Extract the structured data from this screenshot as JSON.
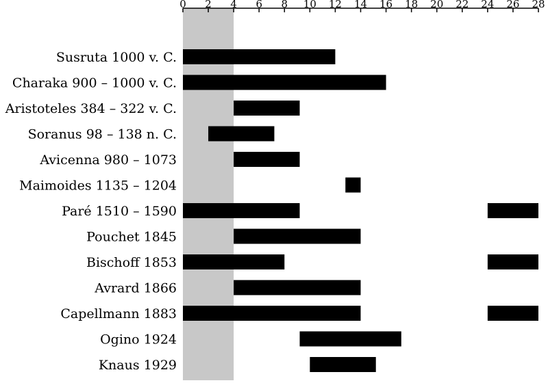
{
  "chart_data": {
    "type": "bar",
    "orientation": "horizontal-range",
    "xlim": [
      0,
      28
    ],
    "x_ticks": [
      "0",
      "2",
      "4",
      "6",
      "8",
      "10",
      "12",
      "14",
      "16",
      "18",
      "20",
      "22",
      "24",
      "26",
      "28"
    ],
    "axis_position": "top",
    "colors": {
      "bar": "#000000",
      "band": "#c8c8c8",
      "axis": "#000000"
    },
    "highlight_band": [
      0,
      4
    ],
    "rows": [
      {
        "label": "Susruta 1000 v. C.",
        "ranges": [
          [
            0,
            12
          ]
        ]
      },
      {
        "label": "Charaka 900 – 1000 v. C.",
        "ranges": [
          [
            0,
            16
          ]
        ]
      },
      {
        "label": "Aristoteles 384 – 322 v. C.",
        "ranges": [
          [
            4,
            9.2
          ]
        ]
      },
      {
        "label": "Soranus 98 – 138 n. C.",
        "ranges": [
          [
            2,
            7.2
          ]
        ]
      },
      {
        "label": "Avicenna 980 – 1073",
        "ranges": [
          [
            4,
            9.2
          ]
        ]
      },
      {
        "label": "Maimoides 1135 – 1204",
        "ranges": [
          [
            12.8,
            14
          ]
        ]
      },
      {
        "label": "Paré 1510 – 1590",
        "ranges": [
          [
            0,
            9.2
          ],
          [
            24,
            28
          ]
        ]
      },
      {
        "label": "Pouchet 1845",
        "ranges": [
          [
            4,
            14
          ]
        ]
      },
      {
        "label": "Bischoff 1853",
        "ranges": [
          [
            0,
            8
          ]
        ],
        "extra": [
          [
            24,
            28
          ]
        ]
      },
      {
        "label": "Avrard 1866",
        "ranges": [
          [
            4,
            14
          ]
        ]
      },
      {
        "label": "Capellmann 1883",
        "ranges": [
          [
            0,
            14
          ],
          [
            24,
            28
          ]
        ]
      },
      {
        "label": "Ogino 1924",
        "ranges": [
          [
            9.2,
            17.2
          ]
        ]
      },
      {
        "label": "Knaus 1929",
        "ranges": [
          [
            10,
            15.2
          ]
        ]
      }
    ]
  }
}
